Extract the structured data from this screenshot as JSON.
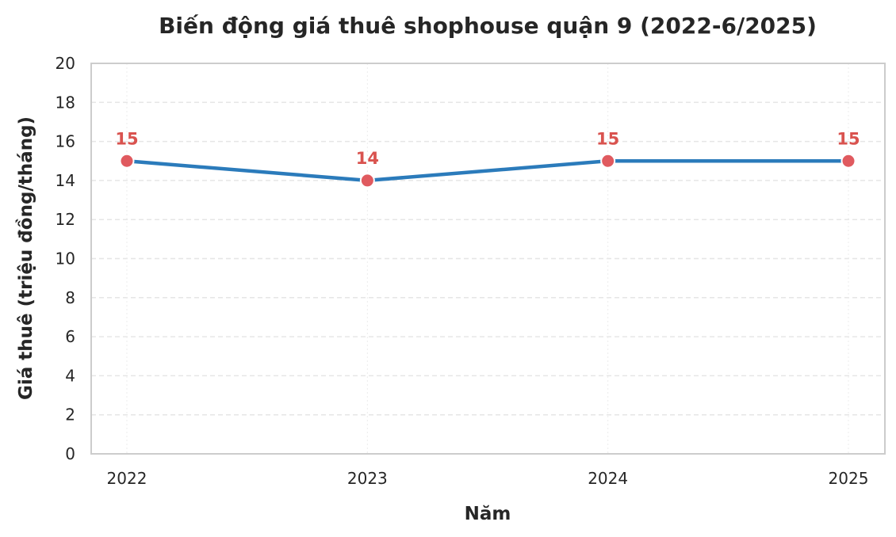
{
  "chart_data": {
    "type": "line",
    "title": "Biến động giá thuê shophouse quận 9 (2022-6/2025)",
    "xlabel": "Năm",
    "ylabel": "Giá thuê (triệu đồng/tháng)",
    "categories": [
      "2022",
      "2023",
      "2024",
      "2025"
    ],
    "series": [
      {
        "values": [
          15,
          14,
          15,
          15
        ]
      }
    ],
    "data_labels": [
      "15",
      "14",
      "15",
      "15"
    ],
    "ylim": [
      0,
      20
    ],
    "yticks": [
      0,
      2,
      4,
      6,
      8,
      10,
      12,
      14,
      16,
      18,
      20
    ],
    "grid": true,
    "line_color": "#2b7bbb",
    "marker_color": "#e05a5f",
    "label_color": "#d9534f"
  }
}
